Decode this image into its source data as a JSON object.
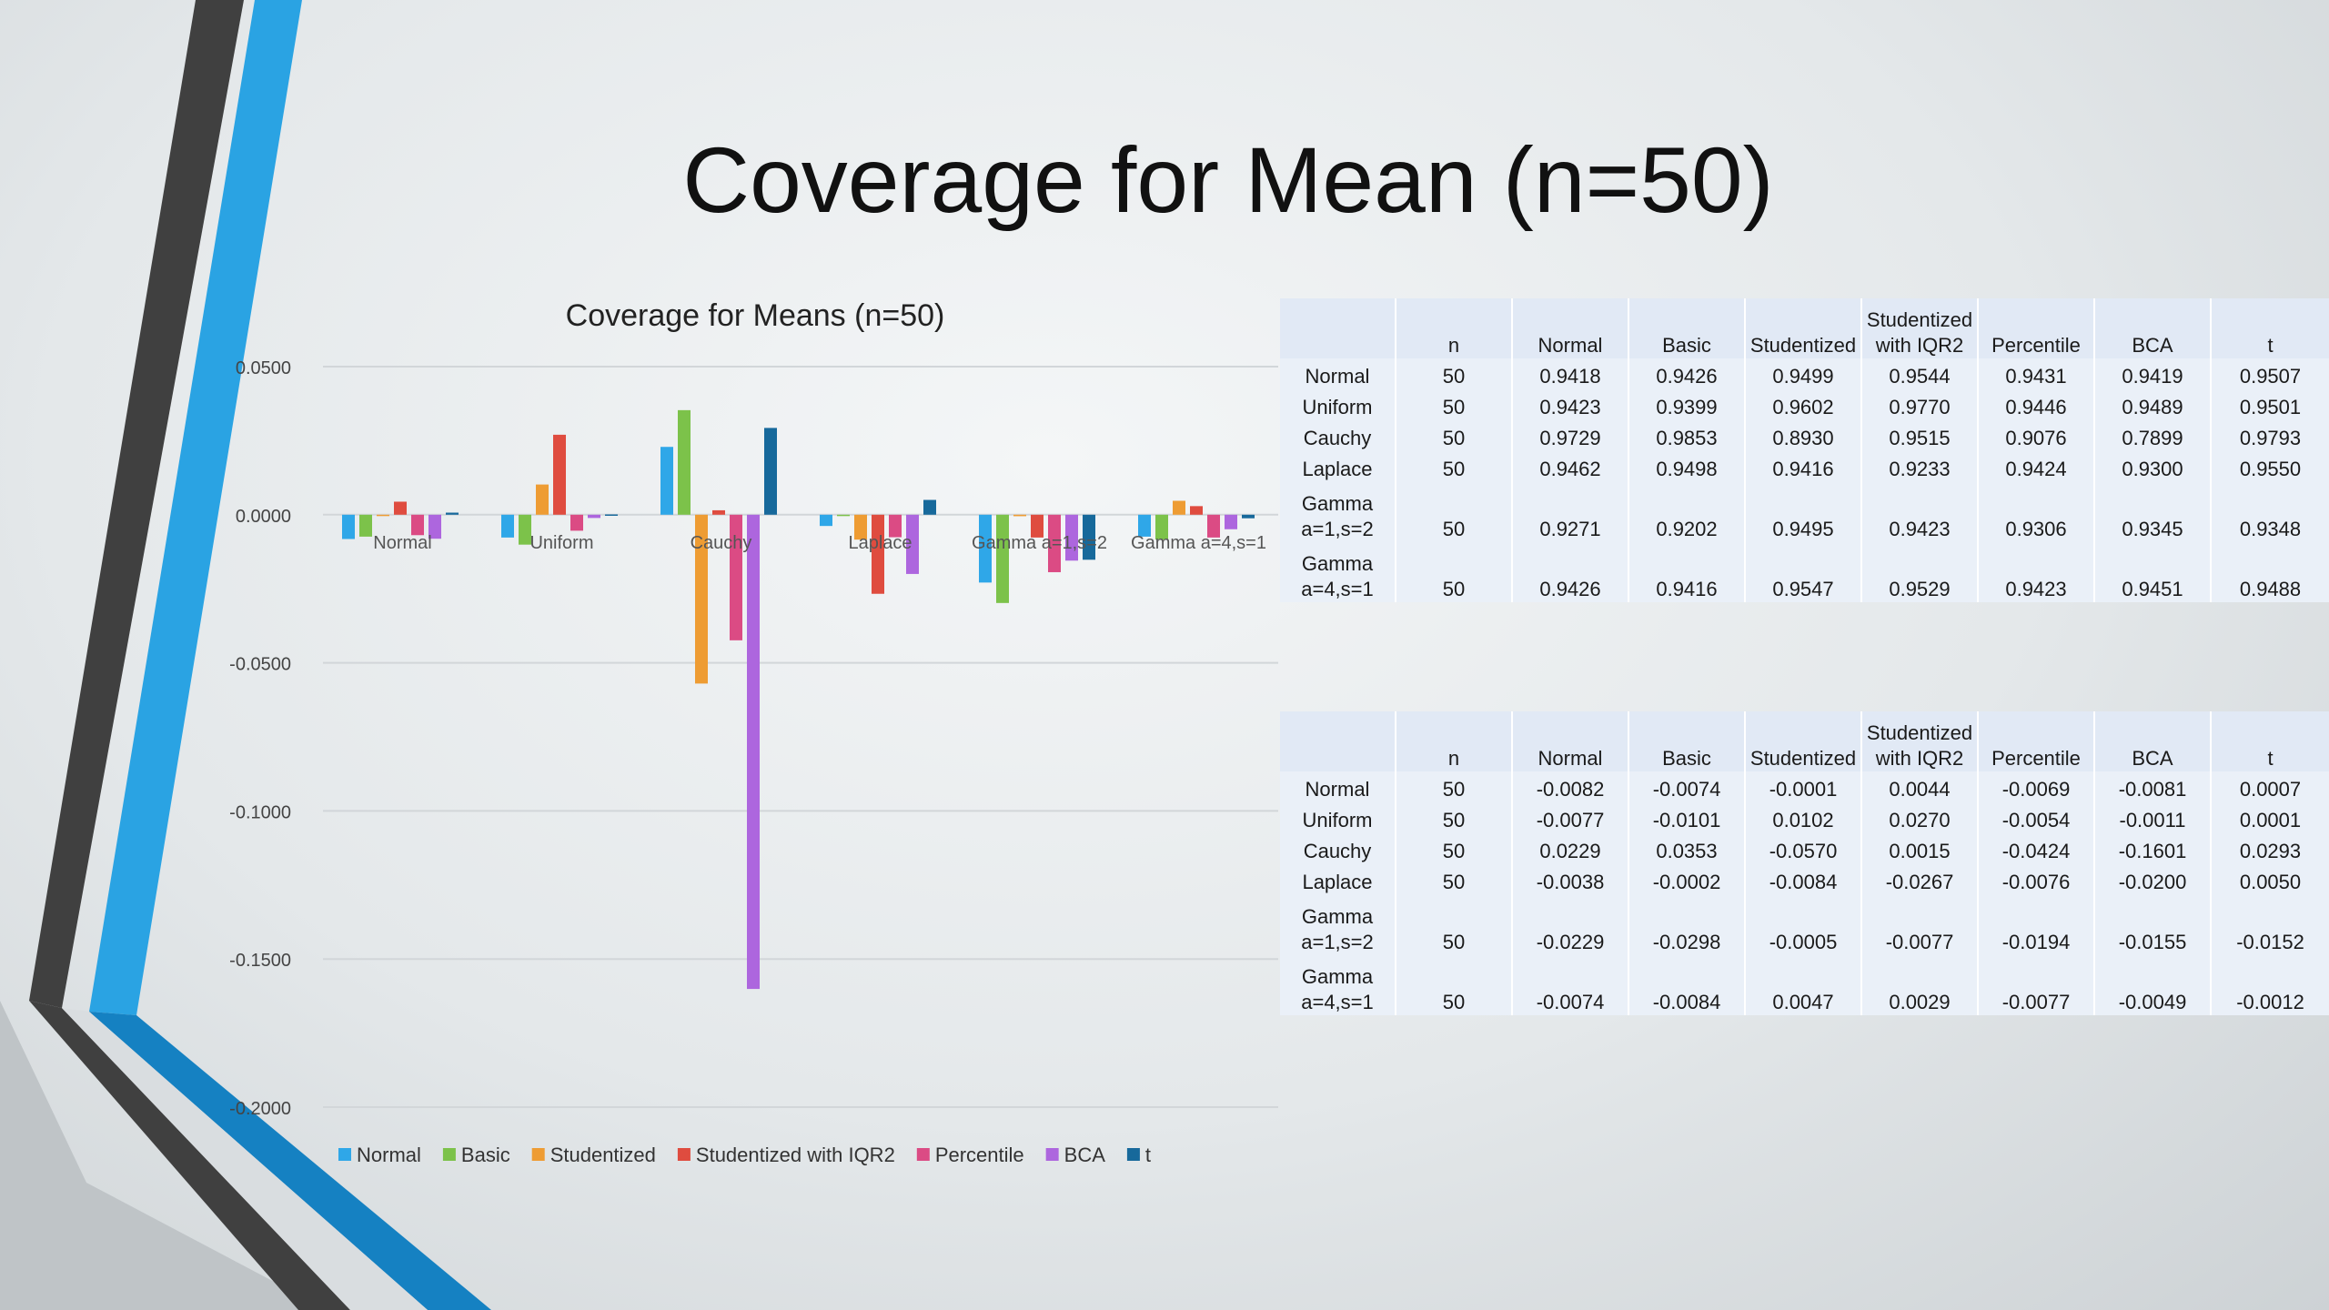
{
  "slide": {
    "title": "Coverage for Mean (n=50)"
  },
  "chart_data": {
    "type": "bar",
    "title": "Coverage for Means (n=50)",
    "categories": [
      "Normal",
      "Uniform",
      "Cauchy",
      "Laplace",
      "Gamma a=1,s=2",
      "Gamma a=4,s=1"
    ],
    "series": [
      {
        "name": "Normal",
        "color": "#2fa7e8",
        "values": [
          -0.0082,
          -0.0077,
          0.0229,
          -0.0038,
          -0.0229,
          -0.0074
        ]
      },
      {
        "name": "Basic",
        "color": "#7cc24a",
        "values": [
          -0.0074,
          -0.0101,
          0.0353,
          -0.0002,
          -0.0298,
          -0.0084
        ]
      },
      {
        "name": "Studentized",
        "color": "#ee9c33",
        "values": [
          -0.0001,
          0.0102,
          -0.057,
          -0.0084,
          -0.0005,
          0.0047
        ]
      },
      {
        "name": "Studentized with IQR2",
        "color": "#df4c3f",
        "values": [
          0.0044,
          0.027,
          0.0015,
          -0.0267,
          -0.0077,
          0.0029
        ]
      },
      {
        "name": "Percentile",
        "color": "#db4b84",
        "values": [
          -0.0069,
          -0.0054,
          -0.0424,
          -0.0076,
          -0.0194,
          -0.0077
        ]
      },
      {
        "name": "BCA",
        "color": "#ad66de",
        "values": [
          -0.0081,
          -0.0011,
          -0.1601,
          -0.02,
          -0.0155,
          -0.0049
        ]
      },
      {
        "name": "t",
        "color": "#17699b",
        "values": [
          0.0007,
          0.0001,
          0.0293,
          0.005,
          -0.0152,
          -0.0012
        ]
      }
    ],
    "ylim": [
      -0.2,
      0.05
    ],
    "yticks": [
      "0.0500",
      "0.0000",
      "-0.0500",
      "-0.1000",
      "-0.1500",
      "-0.2000"
    ],
    "grid": true,
    "legend": "bottom"
  },
  "tables": {
    "top": {
      "headers": [
        "",
        "n",
        "Normal",
        "Basic",
        "Studentized",
        [
          "Studentized",
          "with IQR2"
        ],
        "Percentile",
        "BCA",
        "t"
      ],
      "rows": [
        {
          "label": [
            "Normal"
          ],
          "cells": [
            "50",
            "0.9418",
            "0.9426",
            "0.9499",
            "0.9544",
            "0.9431",
            "0.9419",
            "0.9507"
          ]
        },
        {
          "label": [
            "Uniform"
          ],
          "cells": [
            "50",
            "0.9423",
            "0.9399",
            "0.9602",
            "0.9770",
            "0.9446",
            "0.9489",
            "0.9501"
          ]
        },
        {
          "label": [
            "Cauchy"
          ],
          "cells": [
            "50",
            "0.9729",
            "0.9853",
            "0.8930",
            "0.9515",
            "0.9076",
            "0.7899",
            "0.9793"
          ]
        },
        {
          "label": [
            "Laplace"
          ],
          "cells": [
            "50",
            "0.9462",
            "0.9498",
            "0.9416",
            "0.9233",
            "0.9424",
            "0.9300",
            "0.9550"
          ]
        },
        {
          "label": [
            "Gamma",
            "a=1,s=2"
          ],
          "cells": [
            "50",
            "0.9271",
            "0.9202",
            "0.9495",
            "0.9423",
            "0.9306",
            "0.9345",
            "0.9348"
          ]
        },
        {
          "label": [
            "Gamma",
            "a=4,s=1"
          ],
          "cells": [
            "50",
            "0.9426",
            "0.9416",
            "0.9547",
            "0.9529",
            "0.9423",
            "0.9451",
            "0.9488"
          ]
        }
      ]
    },
    "bottom": {
      "headers": [
        "",
        "n",
        "Normal",
        "Basic",
        "Studentized",
        [
          "Studentized",
          "with IQR2"
        ],
        "Percentile",
        "BCA",
        "t"
      ],
      "rows": [
        {
          "label": [
            "Normal"
          ],
          "cells": [
            "50",
            "-0.0082",
            "-0.0074",
            "-0.0001",
            "0.0044",
            "-0.0069",
            "-0.0081",
            "0.0007"
          ]
        },
        {
          "label": [
            "Uniform"
          ],
          "cells": [
            "50",
            "-0.0077",
            "-0.0101",
            "0.0102",
            "0.0270",
            "-0.0054",
            "-0.0011",
            "0.0001"
          ]
        },
        {
          "label": [
            "Cauchy"
          ],
          "cells": [
            "50",
            "0.0229",
            "0.0353",
            "-0.0570",
            "0.0015",
            "-0.0424",
            "-0.1601",
            "0.0293"
          ]
        },
        {
          "label": [
            "Laplace"
          ],
          "cells": [
            "50",
            "-0.0038",
            "-0.0002",
            "-0.0084",
            "-0.0267",
            "-0.0076",
            "-0.0200",
            "0.0050"
          ]
        },
        {
          "label": [
            "Gamma",
            "a=1,s=2"
          ],
          "cells": [
            "50",
            "-0.0229",
            "-0.0298",
            "-0.0005",
            "-0.0077",
            "-0.0194",
            "-0.0155",
            "-0.0152"
          ]
        },
        {
          "label": [
            "Gamma",
            "a=4,s=1"
          ],
          "cells": [
            "50",
            "-0.0074",
            "-0.0084",
            "0.0047",
            "0.0029",
            "-0.0077",
            "-0.0049",
            "-0.0012"
          ]
        }
      ]
    }
  }
}
